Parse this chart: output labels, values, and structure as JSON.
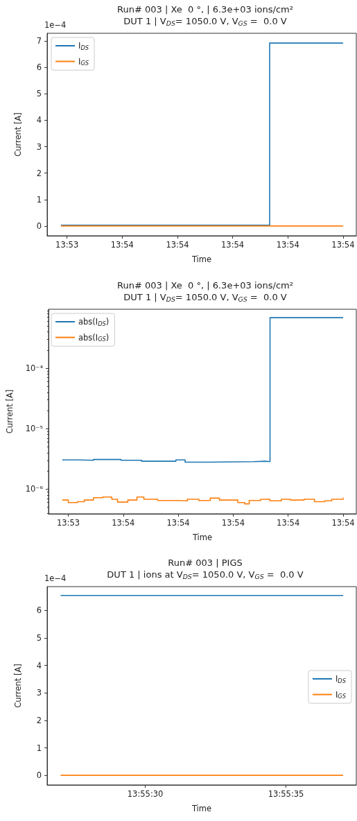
{
  "chart_data": [
    {
      "type": "step",
      "title": "Run# 003 | Xe  0 °, | 6.3e+03 ions/cm²",
      "subtitle": "DUT 1 | V$_{DS}$= 1050.0 V, V$_{GS}$ =  0.0 V",
      "xlabel": "Time",
      "ylabel": "Current [A]",
      "annotations": [
        "1e−4"
      ],
      "legend": "top left",
      "grid": false,
      "xlim": [
        13.887789,
        13.9049
      ],
      "xticks": [
        {
          "value": 13.888889,
          "label": "13:53"
        },
        {
          "value": 13.891944,
          "label": "13:54"
        },
        {
          "value": 13.895,
          "label": "13:54"
        },
        {
          "value": 13.898056,
          "label": "13:54"
        },
        {
          "value": 13.901111,
          "label": "13:54"
        },
        {
          "value": 13.904167,
          "label": "13:54"
        }
      ],
      "ylim": [
        -0.37,
        7.29
      ],
      "yticks": [
        0,
        1,
        2,
        3,
        4,
        5,
        6,
        7
      ],
      "series": [
        {
          "name": "I$_{DS}$",
          "color": "#1f77b4",
          "x": [
            13.888553,
            13.890936,
            13.900103,
            13.904167
          ],
          "values": [
            0.03,
            0.03,
            6.92,
            6.92
          ]
        },
        {
          "name": "I$_{GS}$",
          "color": "#ff7f0e",
          "x": [
            13.888553,
            13.904167
          ],
          "values": [
            0.0,
            0.0
          ]
        }
      ]
    },
    {
      "type": "step",
      "title": "Run# 003 | Xe  0 °, | 6.3e+03 ions/cm²",
      "subtitle": "DUT 1 | V$_{DS}$= 1050.0 V, V$_{GS}$ =  0.0 V",
      "xlabel": "Time",
      "ylabel": "Current [A]",
      "legend": "top left",
      "grid": false,
      "log": "y",
      "xlim": [
        13.887789,
        13.9049
      ],
      "xticks": [
        {
          "value": 13.888889,
          "label": "13:53"
        },
        {
          "value": 13.891944,
          "label": "13:54"
        },
        {
          "value": 13.895,
          "label": "13:54"
        },
        {
          "value": 13.898056,
          "label": "13:54"
        },
        {
          "value": 13.901111,
          "label": "13:54"
        },
        {
          "value": 13.904167,
          "label": "13:54"
        }
      ],
      "ylim": [
        3.9e-07,
        0.00095
      ],
      "yticks": [
        {
          "value": 1e-06,
          "label": "10⁻⁶"
        },
        {
          "value": 1e-05,
          "label": "10⁻⁵"
        },
        {
          "value": 0.0001,
          "label": "10⁻⁴"
        }
      ],
      "series": [
        {
          "name": "abs(I$_{DS}$)",
          "color": "#1f77b4",
          "x": [
            13.888553,
            13.889398,
            13.890289,
            13.891817,
            13.892963,
            13.894872,
            13.895382,
            13.896655,
            13.899202,
            13.899838,
            13.900103,
            13.904167
          ],
          "values": [
            3.05e-06,
            3e-06,
            3.1e-06,
            3e-06,
            2.9e-06,
            3.05e-06,
            2.8e-06,
            2.85e-06,
            2.9e-06,
            2.85e-06,
            0.00069,
            0.00069
          ]
        },
        {
          "name": "abs(I$_{GS}$)",
          "color": "#ff7f0e",
          "x": [
            13.888553,
            13.888889,
            13.889398,
            13.88978,
            13.890289,
            13.890798,
            13.891308,
            13.891626,
            13.892199,
            13.892708,
            13.89309,
            13.893854,
            13.894999,
            13.895509,
            13.896145,
            13.896782,
            13.897291,
            13.89831,
            13.898692,
            13.898947,
            13.899583,
            13.900093,
            13.900729,
            13.901238,
            13.902002,
            13.902575,
            13.903148,
            13.90353,
            13.904167
          ],
          "values": [
            6.6e-07,
            6e-07,
            6.2e-07,
            6.6e-07,
            7.2e-07,
            7.4e-07,
            6.8e-07,
            6.1e-07,
            6.6e-07,
            7.4e-07,
            6.8e-07,
            6.5e-07,
            6.4e-07,
            6.8e-07,
            6.5e-07,
            7.1e-07,
            6.6e-07,
            6e-07,
            5.7e-07,
            6.5e-07,
            6.8e-07,
            6.4e-07,
            6.8e-07,
            6.6e-07,
            6.8e-07,
            6.2e-07,
            6.4e-07,
            6.8e-07,
            7.2e-07
          ]
        }
      ]
    },
    {
      "type": "step",
      "title": "Run# 003 | PIGS",
      "subtitle": "DUT 1 | ions at V$_{DS}$= 1050.0 V, V$_{GS}$ =  0.0 V",
      "xlabel": "Time",
      "ylabel": "Current [A]",
      "annotations": [
        "1e−4"
      ],
      "legend": "right",
      "grid": false,
      "xlim": [
        13.924031,
        13.927083
      ],
      "xticks": [
        {
          "value": 13.925,
          "label": "13:55:30"
        },
        {
          "value": 13.926389,
          "label": "13:55:35"
        }
      ],
      "ylim": [
        -0.35,
        6.87
      ],
      "yticks": [
        0,
        1,
        2,
        3,
        4,
        5,
        6
      ],
      "series": [
        {
          "name": "I$_{DS}$",
          "color": "#1f77b4",
          "x": [
            13.924164,
            13.926953
          ],
          "values": [
            6.55,
            6.55
          ]
        },
        {
          "name": "I$_{GS}$",
          "color": "#ff7f0e",
          "x": [
            13.924164,
            13.926953
          ],
          "values": [
            0.0,
            0.0
          ]
        }
      ]
    }
  ]
}
